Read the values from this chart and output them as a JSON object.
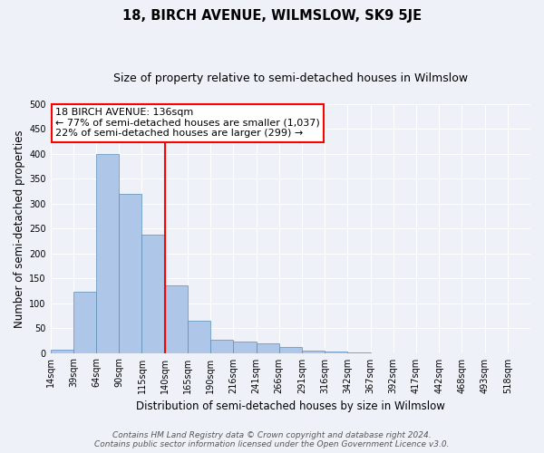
{
  "title": "18, BIRCH AVENUE, WILMSLOW, SK9 5JE",
  "subtitle": "Size of property relative to semi-detached houses in Wilmslow",
  "xlabel": "Distribution of semi-detached houses by size in Wilmslow",
  "ylabel": "Number of semi-detached properties",
  "bin_labels": [
    "14sqm",
    "39sqm",
    "64sqm",
    "90sqm",
    "115sqm",
    "140sqm",
    "165sqm",
    "190sqm",
    "216sqm",
    "241sqm",
    "266sqm",
    "291sqm",
    "316sqm",
    "342sqm",
    "367sqm",
    "392sqm",
    "417sqm",
    "442sqm",
    "468sqm",
    "493sqm",
    "518sqm"
  ],
  "bar_values": [
    7,
    123,
    400,
    320,
    238,
    135,
    65,
    26,
    22,
    19,
    12,
    5,
    2,
    1,
    0,
    0,
    0,
    0,
    0,
    0,
    0
  ],
  "bar_color": "#aec6e8",
  "bar_edge_color": "#5b8db8",
  "vline_x": 5.0,
  "vline_color": "red",
  "annotation_title": "18 BIRCH AVENUE: 136sqm",
  "annotation_line1": "← 77% of semi-detached houses are smaller (1,037)",
  "annotation_line2": "22% of semi-detached houses are larger (299) →",
  "annotation_box_color": "white",
  "annotation_box_edge_color": "red",
  "ylim": [
    0,
    500
  ],
  "yticks": [
    0,
    50,
    100,
    150,
    200,
    250,
    300,
    350,
    400,
    450,
    500
  ],
  "footer_line1": "Contains HM Land Registry data © Crown copyright and database right 2024.",
  "footer_line2": "Contains public sector information licensed under the Open Government Licence v3.0.",
  "bg_color": "#eef2f8",
  "grid_color": "white",
  "title_fontsize": 10.5,
  "subtitle_fontsize": 9,
  "axis_label_fontsize": 8.5,
  "tick_fontsize": 7,
  "annotation_fontsize": 8,
  "footer_fontsize": 6.5
}
